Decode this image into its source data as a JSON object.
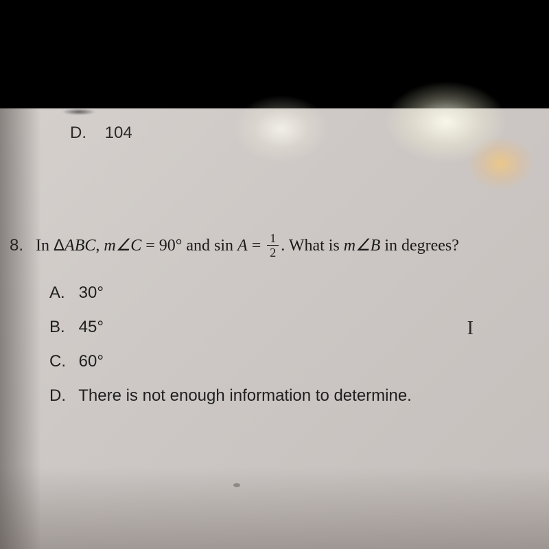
{
  "previous_question": {
    "option_letter": "D.",
    "option_value": "104"
  },
  "question": {
    "number": "8.",
    "prefix": "In ",
    "triangle_symbol": "Δ",
    "triangle_name": "ABC",
    "comma_text": ", ",
    "angle_prefix": "m∠C",
    "equals_angle": " = 90° and sin ",
    "sin_var": "A",
    "equals_frac": " = ",
    "fraction_num": "1",
    "fraction_den": "2",
    "period": ". What is ",
    "angle_b": "m∠B",
    "suffix": " in degrees?"
  },
  "answers": [
    {
      "letter": "A.",
      "text": "30°"
    },
    {
      "letter": "B.",
      "text": "45°"
    },
    {
      "letter": "C.",
      "text": "60°"
    },
    {
      "letter": "D.",
      "text": "There is not enough information to determine."
    }
  ],
  "cursor_glyph": "I",
  "colors": {
    "black_bar": "#000000",
    "screen_bg": "#cdc8c5",
    "text": "#1a1a1a"
  },
  "typography": {
    "question_fontsize": 24,
    "answer_fontsize": 24,
    "font_family_serif": "Times New Roman",
    "font_family_sans": "Arial"
  }
}
